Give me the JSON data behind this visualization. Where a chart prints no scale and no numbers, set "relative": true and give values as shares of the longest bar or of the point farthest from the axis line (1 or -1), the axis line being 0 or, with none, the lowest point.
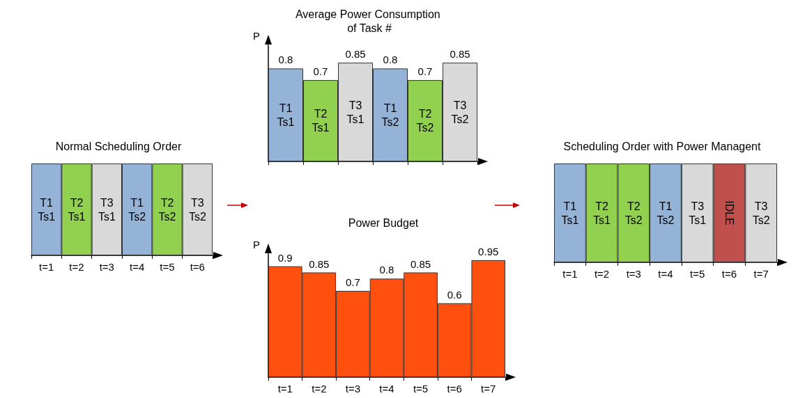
{
  "chart_data": [
    {
      "type": "bar",
      "title": "Normal Scheduling Order",
      "relative": true,
      "categories": [
        "t=1",
        "t=2",
        "t=3",
        "t=4",
        "t=5",
        "t=6"
      ],
      "values": [
        1,
        1,
        1,
        1,
        1,
        1
      ],
      "colors": [
        "#95b3d7",
        "#92d050",
        "#d9d9d9",
        "#95b3d7",
        "#92d050",
        "#d9d9d9"
      ],
      "annotations": [
        "T1\nTs1",
        "T2\nTs1",
        "T3\nTs1",
        "T1\nTs2",
        "T2\nTs2",
        "T3\nTs2"
      ]
    },
    {
      "type": "bar",
      "title": "Average Power Consumption of Task #",
      "ylabel": "P",
      "categories": [
        null,
        null,
        null,
        null,
        null,
        null
      ],
      "values": [
        0.8,
        0.7,
        0.85,
        0.8,
        0.7,
        0.85
      ],
      "colors": [
        "#95b3d7",
        "#92d050",
        "#d9d9d9",
        "#95b3d7",
        "#92d050",
        "#d9d9d9"
      ],
      "annotations": [
        "T1\nTs1",
        "T2\nTs1",
        "T3\nTs1",
        "T1\nTs2",
        "T2\nTs2",
        "T3\nTs2"
      ],
      "data_labels": true,
      "tick_labels": false
    },
    {
      "type": "bar",
      "title": "Power Budget",
      "ylabel": "P",
      "categories": [
        "t=1",
        "t=2",
        "t=3",
        "t=4",
        "t=5",
        "t=6",
        "t=7"
      ],
      "values": [
        0.9,
        0.85,
        0.7,
        0.8,
        0.85,
        0.6,
        0.95
      ],
      "color": "#ff5010",
      "data_labels": true,
      "tick_labels": "x"
    },
    {
      "type": "bar",
      "title": "Scheduling Order with Power Managent",
      "relative": true,
      "categories": [
        "t=1",
        "t=2",
        "t=3",
        "t=4",
        "t=5",
        "t=6",
        "t=7"
      ],
      "values": [
        1,
        1,
        1,
        1,
        1,
        1,
        1
      ],
      "colors": [
        "#95b3d7",
        "#92d050",
        "#92d050",
        "#95b3d7",
        "#d9d9d9",
        "#c0504d",
        "#d9d9d9"
      ],
      "annotations": [
        "T1\nTs1",
        "T2\nTs1",
        "T2\nTs2",
        "T1\nTs2",
        "T3\nTs1",
        "IDLE",
        "T3\nTs2"
      ]
    }
  ]
}
